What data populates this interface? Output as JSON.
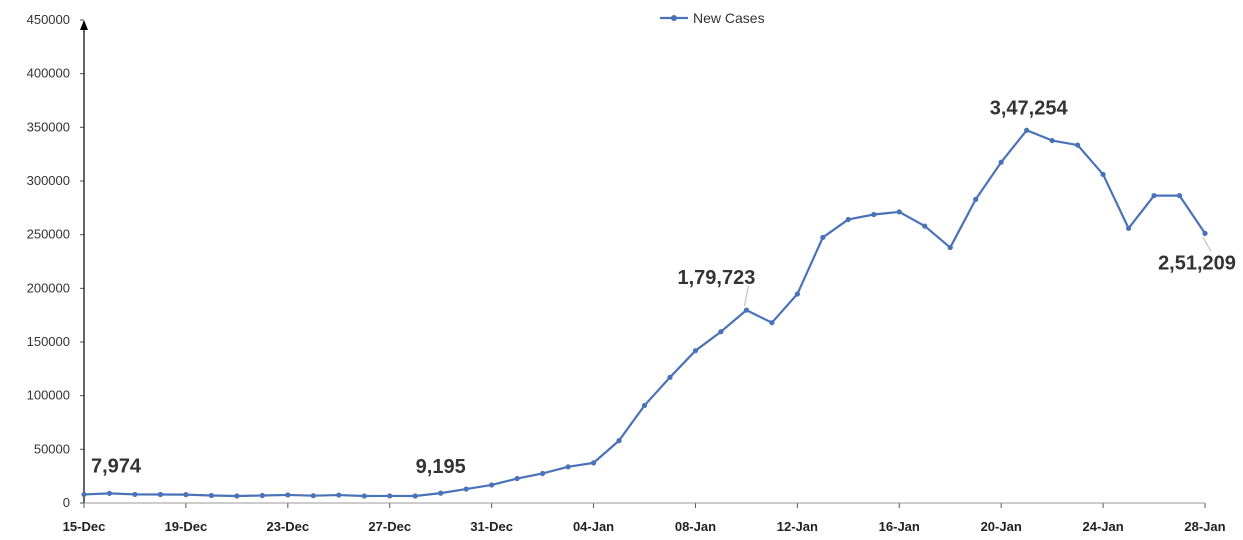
{
  "chart_data": {
    "type": "line",
    "title": "",
    "xlabel": "",
    "ylabel": "",
    "legend": {
      "position": "top-center",
      "entries": [
        "New Cases"
      ]
    },
    "grid": false,
    "ylim": [
      0,
      450000
    ],
    "y_ticks": [
      "0",
      "50000",
      "100000",
      "150000",
      "200000",
      "250000",
      "300000",
      "350000",
      "400000",
      "450000"
    ],
    "y_tick_values": [
      0,
      50000,
      100000,
      150000,
      200000,
      250000,
      300000,
      350000,
      400000,
      450000
    ],
    "x_tick_labels": [
      "15-Dec",
      "19-Dec",
      "23-Dec",
      "27-Dec",
      "31-Dec",
      "04-Jan",
      "08-Jan",
      "12-Jan",
      "16-Jan",
      "20-Jan",
      "24-Jan",
      "28-Jan"
    ],
    "x": [
      "15-Dec",
      "16-Dec",
      "17-Dec",
      "18-Dec",
      "19-Dec",
      "20-Dec",
      "21-Dec",
      "22-Dec",
      "23-Dec",
      "24-Dec",
      "25-Dec",
      "26-Dec",
      "27-Dec",
      "28-Dec",
      "29-Dec",
      "30-Dec",
      "31-Dec",
      "01-Jan",
      "02-Jan",
      "03-Jan",
      "04-Jan",
      "05-Jan",
      "06-Jan",
      "07-Jan",
      "08-Jan",
      "09-Jan",
      "10-Jan",
      "11-Jan",
      "12-Jan",
      "13-Jan",
      "14-Jan",
      "15-Jan",
      "16-Jan",
      "17-Jan",
      "18-Jan",
      "19-Jan",
      "20-Jan",
      "21-Jan",
      "22-Jan",
      "23-Jan",
      "24-Jan",
      "25-Jan",
      "26-Jan",
      "27-Jan",
      "28-Jan"
    ],
    "series": [
      {
        "name": "New Cases",
        "color": "#4a72b8",
        "values": [
          7974,
          9000,
          8000,
          7900,
          7800,
          7000,
          6500,
          7000,
          7500,
          6800,
          7400,
          6500,
          6600,
          6500,
          9195,
          13000,
          16800,
          22800,
          27500,
          33700,
          37400,
          58100,
          90900,
          117100,
          141900,
          159600,
          179723,
          168000,
          194700,
          247400,
          264200,
          268800,
          271200,
          258000,
          238000,
          282900,
          317500,
          347254,
          337700,
          333500,
          306100,
          255900,
          286400,
          286400,
          251209
        ]
      }
    ],
    "annotations": [
      {
        "text": "7,974",
        "x": "15-Dec",
        "value": 7974
      },
      {
        "text": "9,195",
        "x": "29-Dec",
        "value": 9195
      },
      {
        "text": "1,79,723",
        "x": "10-Jan",
        "value": 179723
      },
      {
        "text": "3,47,254",
        "x": "21-Jan",
        "value": 347254
      },
      {
        "text": "2,51,209",
        "x": "28-Jan",
        "value": 251209
      }
    ]
  }
}
